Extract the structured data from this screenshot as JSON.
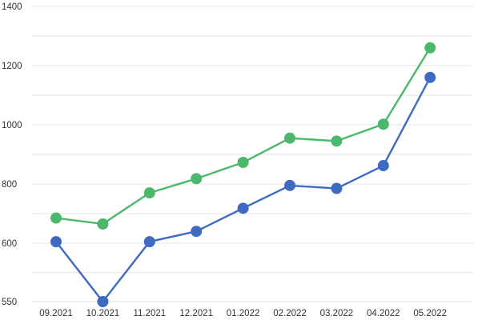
{
  "chart_data": {
    "type": "line",
    "title": "",
    "xlabel": "",
    "ylabel": "",
    "categories": [
      "09.2021",
      "10.2021",
      "11.2021",
      "12.2021",
      "01.2022",
      "02.2022",
      "03.2022",
      "04.2022",
      "05.2022"
    ],
    "y_ticks": [
      {
        "value": 1400,
        "label": "1400"
      },
      {
        "value": 1200,
        "label": "1200"
      },
      {
        "value": 1000,
        "label": "1000"
      },
      {
        "value": 800,
        "label": "800"
      },
      {
        "value": 600,
        "label": "600"
      },
      {
        "value": 550,
        "label": "550"
      }
    ],
    "ylim": [
      550,
      1400
    ],
    "grid": true,
    "legend": "none",
    "series": [
      {
        "color": "#4bb86b",
        "values": [
          685,
          665,
          770,
          818,
          873,
          955,
          945,
          1002,
          1260
        ]
      },
      {
        "color": "#3e6ac2",
        "values": [
          605,
          550,
          605,
          640,
          718,
          795,
          785,
          862,
          1160
        ]
      }
    ]
  }
}
